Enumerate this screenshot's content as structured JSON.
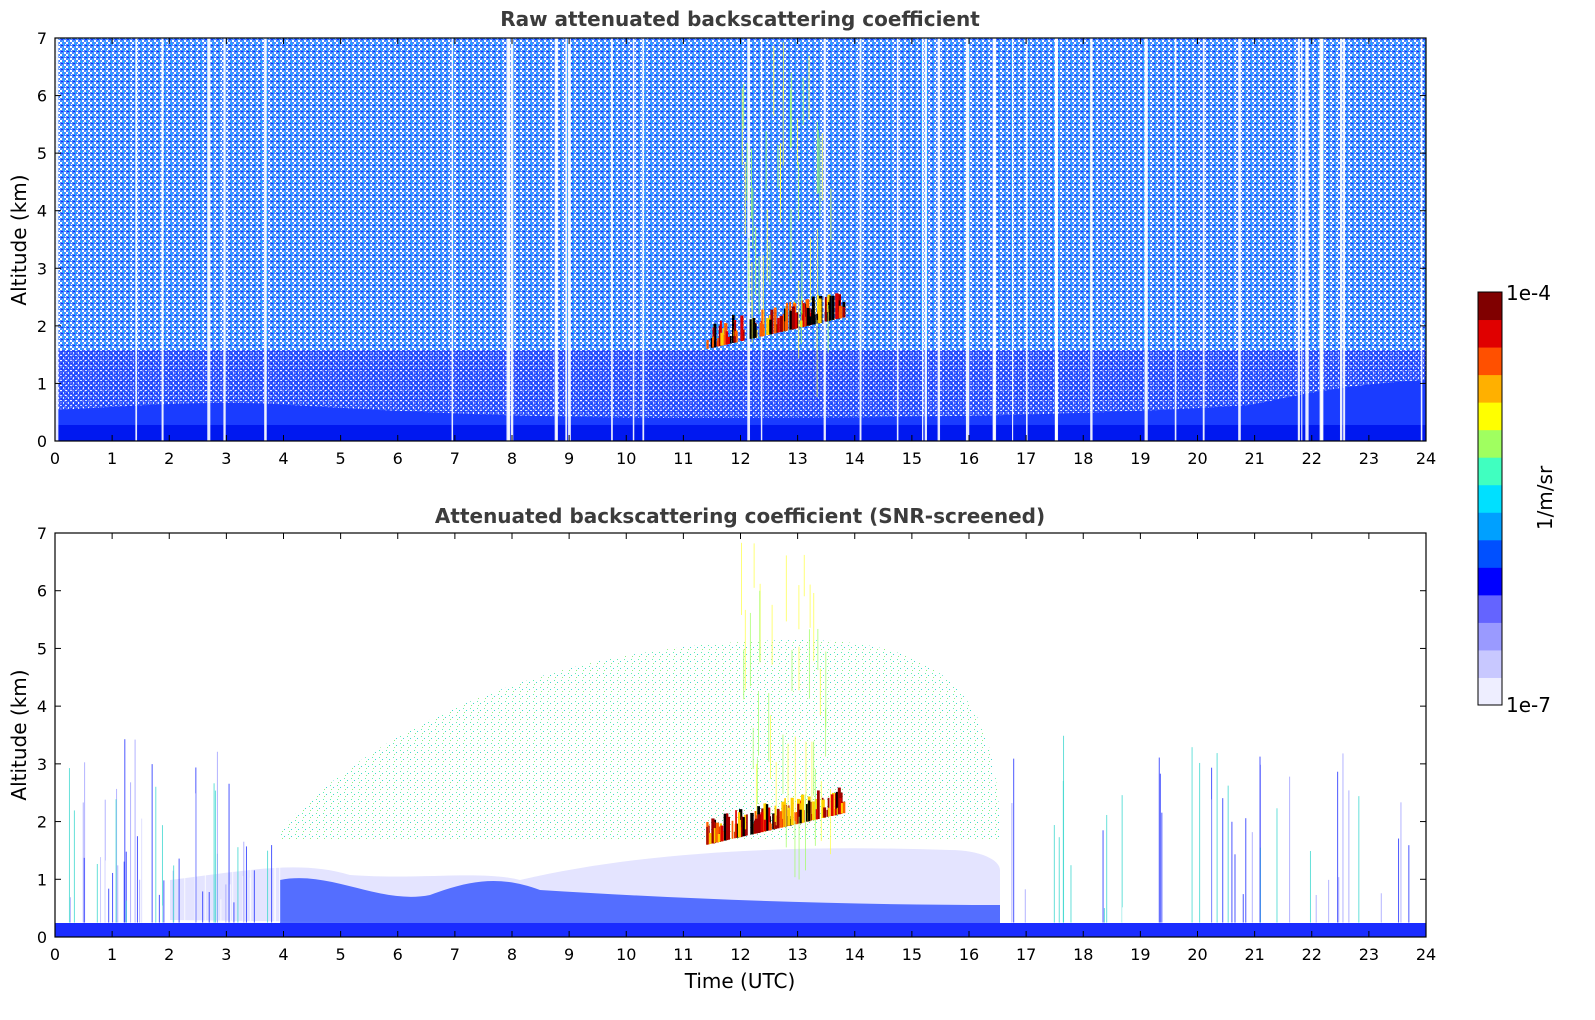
{
  "chart_data": [
    {
      "type": "heatmap",
      "title": "Raw attenuated backscattering coefficient",
      "xlabel": "",
      "ylabel": "Altitude (km)",
      "xlim": [
        0,
        24
      ],
      "ylim": [
        0,
        7
      ],
      "xticks": [
        "0",
        "1",
        "2",
        "3",
        "4",
        "5",
        "6",
        "7",
        "8",
        "9",
        "10",
        "11",
        "12",
        "13",
        "14",
        "15",
        "16",
        "17",
        "18",
        "19",
        "20",
        "21",
        "22",
        "23",
        "24"
      ],
      "yticks": [
        "0",
        "1",
        "2",
        "3",
        "4",
        "5",
        "6",
        "7"
      ],
      "features": [
        {
          "name": "noise background",
          "x": [
            0,
            24
          ],
          "y": [
            0.5,
            7
          ],
          "level": "low-mid (blue/cyan speckle)"
        },
        {
          "name": "boundary layer",
          "x": [
            0,
            24
          ],
          "y": [
            0,
            1
          ],
          "level": "low (solid blue)"
        },
        {
          "name": "cloud layer",
          "x": [
            11.4,
            13.8
          ],
          "y": [
            1.6,
            2.5
          ],
          "level": "high (red/black)"
        },
        {
          "name": "vertical data gaps",
          "x": [
            0,
            24
          ],
          "y": [
            0,
            7
          ],
          "level": "none (white columns)"
        }
      ]
    },
    {
      "type": "heatmap",
      "title": "Attenuated backscattering coefficient (SNR-screened)",
      "xlabel": "Time (UTC)",
      "ylabel": "Altitude (km)",
      "xlim": [
        0,
        24
      ],
      "ylim": [
        0,
        7
      ],
      "xticks": [
        "0",
        "1",
        "2",
        "3",
        "4",
        "5",
        "6",
        "7",
        "8",
        "9",
        "10",
        "11",
        "12",
        "13",
        "14",
        "15",
        "16",
        "17",
        "18",
        "19",
        "20",
        "21",
        "22",
        "23",
        "24"
      ],
      "yticks": [
        "0",
        "1",
        "2",
        "3",
        "4",
        "5",
        "6",
        "7"
      ],
      "features": [
        {
          "name": "surface layer",
          "x": [
            0,
            24
          ],
          "y": [
            0,
            0.25
          ],
          "level": "low (solid blue)"
        },
        {
          "name": "boundary layer",
          "x": [
            2.5,
            16.5
          ],
          "y": [
            0,
            1.1
          ],
          "level": "low (blue/lavender)"
        },
        {
          "name": "elevated aerosol",
          "x": [
            4,
            16.5
          ],
          "y": [
            1.8,
            5
          ],
          "level": "mid (green/cyan speckle)"
        },
        {
          "name": "cloud layer",
          "x": [
            11.4,
            13.8
          ],
          "y": [
            1.6,
            2.5
          ],
          "level": "high (red/black)"
        },
        {
          "name": "night-time noise streaks",
          "x": [
            16.5,
            24
          ],
          "y": [
            0,
            4
          ],
          "level": "low (blue/cyan)"
        }
      ]
    }
  ],
  "colorbar": {
    "max_label": "1e-4",
    "min_label": "1e-7",
    "unit_label": "1/m/sr",
    "colors": [
      "#eeeeff",
      "#c8c8ff",
      "#9a9aff",
      "#6464ff",
      "#0000ff",
      "#0050ff",
      "#00a0ff",
      "#00e0ff",
      "#40ffc0",
      "#a0ff60",
      "#ffff00",
      "#ffb000",
      "#ff5000",
      "#e00000",
      "#800000"
    ]
  }
}
